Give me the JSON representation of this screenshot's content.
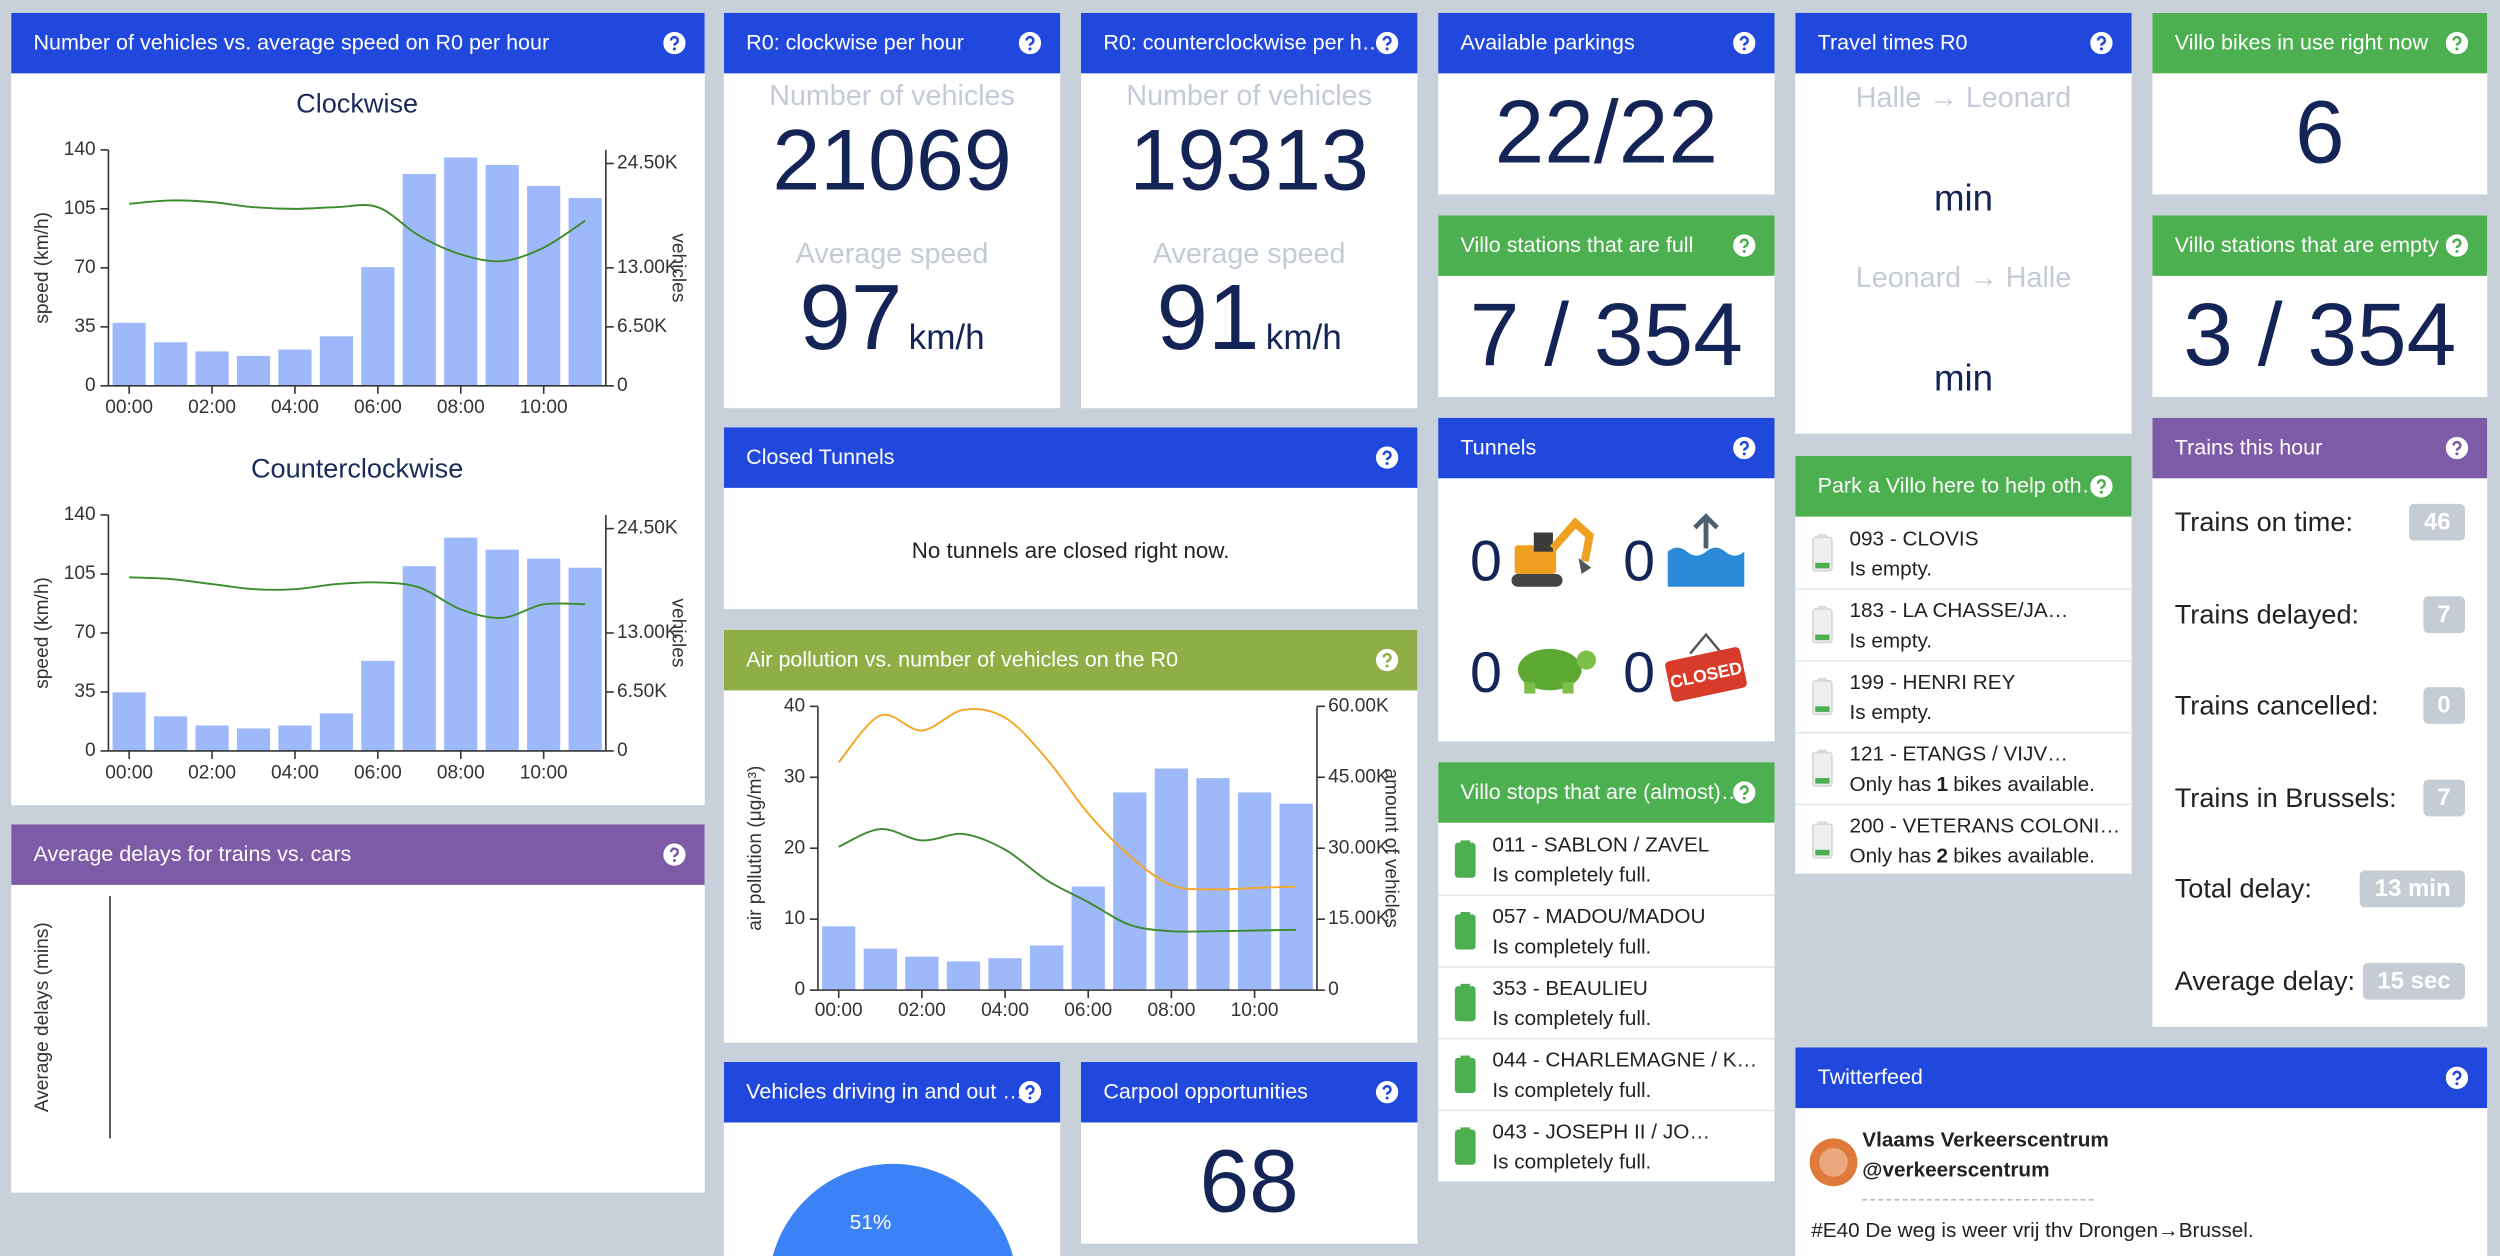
{
  "chart_data": [
    {
      "type": "bar",
      "title": "Clockwise",
      "categories": [
        "00:00",
        null,
        "02:00",
        null,
        "04:00",
        null,
        "06:00",
        null,
        "08:00",
        null,
        "10:00",
        null
      ],
      "ylabel": "speed (km/h)",
      "y2label": "vehicles",
      "ylim": [
        0,
        140
      ],
      "yticks": [
        0,
        35,
        70,
        105,
        140
      ],
      "y2lim": [
        0,
        26000
      ],
      "y2ticks": [
        0,
        {
          "value": 6500,
          "label": "6.50K"
        },
        {
          "value": 13000,
          "label": "13.00K"
        },
        {
          "value": 24500,
          "label": "24.50K"
        }
      ],
      "series": [
        {
          "type": "bar",
          "axis": "y2",
          "color": "#9db9f9",
          "values": [
            6950,
            4800,
            3800,
            3300,
            4000,
            5460,
            13080,
            23340,
            25160,
            24330,
            22020,
            20690
          ]
        },
        {
          "type": "line",
          "color": "#3d8b2f",
          "values": [
            108,
            110,
            109,
            106,
            105,
            106,
            106,
            89,
            78,
            74,
            82,
            98
          ]
        }
      ]
    },
    {
      "type": "bar",
      "title": "Counterclockwise",
      "categories": [
        "00:00",
        null,
        "02:00",
        null,
        "04:00",
        null,
        "06:00",
        null,
        "08:00",
        null,
        "10:00",
        null
      ],
      "ylabel": "speed (km/h)",
      "y2label": "vehicles",
      "ylim": [
        0,
        140
      ],
      "yticks": [
        0,
        35,
        70,
        105,
        140
      ],
      "y2lim": [
        0,
        26000
      ],
      "y2ticks": [
        0,
        {
          "value": 6500,
          "label": "6.50K"
        },
        {
          "value": 13000,
          "label": "13.00K"
        },
        {
          "value": 24500,
          "label": "24.50K"
        }
      ],
      "series": [
        {
          "type": "bar",
          "axis": "y2",
          "color": "#9db9f9",
          "values": [
            6460,
            3810,
            2810,
            2480,
            2810,
            4140,
            9930,
            20360,
            23500,
            22180,
            21190,
            20190
          ]
        },
        {
          "type": "line",
          "color": "#3d8b2f",
          "values": [
            103,
            102,
            99,
            96,
            96,
            99,
            100,
            97,
            84,
            79,
            87,
            87
          ]
        }
      ]
    },
    {
      "type": "bar",
      "categories": [
        "00:00",
        null,
        "02:00",
        null,
        "04:00",
        null,
        "06:00",
        null,
        "08:00",
        null,
        "10:00",
        null
      ],
      "ylabel": "air pollution (μg/m³)",
      "y2label": "amount of vehicles",
      "ylim": [
        0,
        40
      ],
      "yticks": [
        0,
        10,
        20,
        30,
        40
      ],
      "y2lim": [
        0,
        60000
      ],
      "y2ticks": [
        0,
        {
          "value": 15000,
          "label": "15.00K"
        },
        {
          "value": 30000,
          "label": "30.00K"
        },
        {
          "value": 45000,
          "label": "45.00K"
        },
        {
          "value": 60000,
          "label": "60.00K"
        }
      ],
      "series": [
        {
          "type": "bar",
          "axis": "y2",
          "color": "#9db9f9",
          "values": [
            13480,
            8760,
            7080,
            6070,
            6740,
            9440,
            21900,
            41800,
            46850,
            44820,
            41790,
            39430
          ]
        },
        {
          "type": "line",
          "color": "#f5a623",
          "values": [
            32.1,
            38.7,
            36.6,
            39.5,
            38.4,
            32.6,
            24.9,
            18.9,
            14.8,
            14.2,
            14.4,
            14.6
          ]
        },
        {
          "type": "line",
          "color": "#3d8b2f",
          "values": [
            20.2,
            22.7,
            21.1,
            22.0,
            19.8,
            15.5,
            12.4,
            9.2,
            8.3,
            8.3,
            8.4,
            8.5
          ]
        }
      ]
    },
    {
      "type": "line",
      "ylabel": "Average delays (mins)"
    },
    {
      "type": "pie",
      "values": [
        51
      ],
      "value_labels": [
        "51%"
      ],
      "color": "#3b82f6"
    }
  ],
  "panels": {
    "vehicles_speed": {
      "title": "Number of vehicles vs. average speed on R0 per hour"
    },
    "average_delays": {
      "title": "Average delays for trains vs. cars"
    },
    "clockwise": {
      "title": "R0: clockwise per hour",
      "count_label": "Number of vehicles",
      "count": 21069,
      "speed_label": "Average speed",
      "speed": 97,
      "speed_unit": "km/h"
    },
    "counterclockwise": {
      "title": "R0: counterclockwise per h…",
      "count_label": "Number of vehicles",
      "count": 19313,
      "speed_label": "Average speed",
      "speed": 91,
      "speed_unit": "km/h"
    },
    "closed_tunnels": {
      "title": "Closed Tunnels",
      "message": "No tunnels are closed right now."
    },
    "air_pollution": {
      "title": "Air pollution vs. number of vehicles on the R0"
    },
    "in_out": {
      "title": "Vehicles driving in and out …"
    },
    "carpool": {
      "title": "Carpool opportunities",
      "value": 68
    },
    "parkings": {
      "title": "Available parkings",
      "value": "22/22"
    },
    "villo_full": {
      "title": "Villo stations that are full",
      "value": "7 / 354"
    },
    "tunnels": {
      "title": "Tunnels",
      "counts": [
        0,
        0,
        0,
        0
      ],
      "sign": "CLOSED"
    },
    "villo_almost_full": {
      "title": "Villo stops that are (almost)…",
      "items": [
        {
          "name": "011 - SABLON / ZAVEL",
          "status": "Is completely full."
        },
        {
          "name": "057 - MADOU/MADOU",
          "status": "Is completely full."
        },
        {
          "name": "353 - BEAULIEU",
          "status": "Is completely full."
        },
        {
          "name": "044 - CHARLEMAGNE / K…",
          "status": "Is completely full."
        },
        {
          "name": "043 - JOSEPH II / JO…",
          "status": "Is completely full."
        }
      ]
    },
    "travel_times": {
      "title": "Travel times R0",
      "routes": [
        {
          "route": "Halle → Leonard",
          "unit": "min"
        },
        {
          "route": "Leonard → Halle",
          "unit": "min"
        }
      ]
    },
    "park_villo": {
      "title": "Park a Villo here to help oth…",
      "items": [
        {
          "name": "093 - CLOVIS",
          "status": "Is empty."
        },
        {
          "name": "183 - LA CHASSE/JA…",
          "status": "Is empty."
        },
        {
          "name": "199 - HENRI REY",
          "status": "Is empty."
        },
        {
          "name": "121 - ETANGS / VIJV…",
          "status_parts": [
            "Only has",
            1,
            "bikes available."
          ]
        },
        {
          "name": "200 - VETERANS COLONI…",
          "status_parts": [
            "Only has",
            2,
            "bikes available."
          ]
        }
      ]
    },
    "twitter": {
      "title": "Twitterfeed",
      "name": "Vlaams Verkeerscentrum",
      "handle": "@verkeerscentrum",
      "text": "#E40 De weg is weer vrij thv Drongen→Brussel."
    },
    "villo_in_use": {
      "title": "Villo bikes in use right now",
      "value": 6
    },
    "villo_empty": {
      "title": "Villo stations that are empty",
      "value": "3 / 354"
    },
    "trains": {
      "title": "Trains this hour",
      "rows": [
        {
          "label": "Trains on time:",
          "value": 46
        },
        {
          "label": "Trains delayed:",
          "value": 7
        },
        {
          "label": "Trains cancelled:",
          "value": 0
        },
        {
          "label": "Trains in Brussels:",
          "value": 7
        },
        {
          "label": "Total delay:",
          "value": "13 min"
        },
        {
          "label": "Average delay:",
          "value": "15 sec"
        }
      ]
    }
  }
}
